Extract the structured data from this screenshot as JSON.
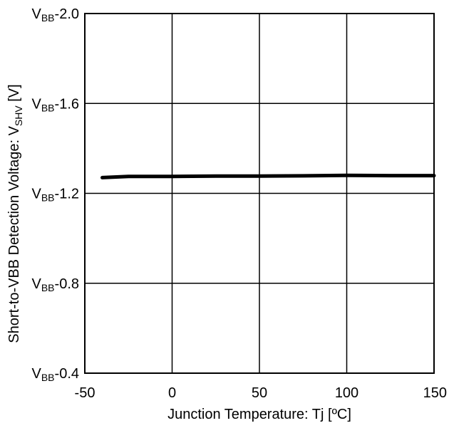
{
  "chart_data": {
    "type": "line",
    "xlabel": "Junction Temperature: Tj [ºC]",
    "ylabel": {
      "prefix": "Short-to-VBB Detection Voltage: V",
      "sub": "SHV",
      "suffix": " [V]"
    },
    "xlim": [
      -50,
      150
    ],
    "ylim": [
      -0.4,
      -2.0
    ],
    "ylim_note": "values are offsets from VBB: VBB-0.4 (bottom) to VBB-2.0 (top)",
    "x_ticks": [
      {
        "value": -50,
        "label": "-50"
      },
      {
        "value": 0,
        "label": "0"
      },
      {
        "value": 50,
        "label": "50"
      },
      {
        "value": 100,
        "label": "100"
      },
      {
        "value": 150,
        "label": "150"
      }
    ],
    "y_ticks": [
      {
        "value": -2.0,
        "base": "V",
        "sub": "BB",
        "rest": "-2.0"
      },
      {
        "value": -1.6,
        "base": "V",
        "sub": "BB",
        "rest": "-1.6"
      },
      {
        "value": -1.2,
        "base": "V",
        "sub": "BB",
        "rest": "-1.2"
      },
      {
        "value": -0.8,
        "base": "V",
        "sub": "BB",
        "rest": "-0.8"
      },
      {
        "value": -0.4,
        "base": "V",
        "sub": "BB",
        "rest": "-0.4"
      }
    ],
    "grid": true,
    "series": [
      {
        "x": [
          -40,
          -25,
          0,
          25,
          50,
          75,
          100,
          125,
          150
        ],
        "y": [
          -1.27,
          -1.275,
          -1.275,
          -1.277,
          -1.277,
          -1.278,
          -1.28,
          -1.279,
          -1.279
        ]
      }
    ]
  }
}
